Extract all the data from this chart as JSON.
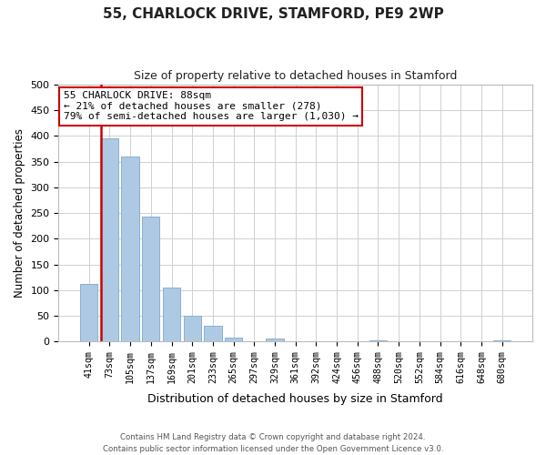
{
  "title": "55, CHARLOCK DRIVE, STAMFORD, PE9 2WP",
  "subtitle": "Size of property relative to detached houses in Stamford",
  "xlabel": "Distribution of detached houses by size in Stamford",
  "ylabel": "Number of detached properties",
  "bar_labels": [
    "41sqm",
    "73sqm",
    "105sqm",
    "137sqm",
    "169sqm",
    "201sqm",
    "233sqm",
    "265sqm",
    "297sqm",
    "329sqm",
    "361sqm",
    "392sqm",
    "424sqm",
    "456sqm",
    "488sqm",
    "520sqm",
    "552sqm",
    "584sqm",
    "616sqm",
    "648sqm",
    "680sqm"
  ],
  "bar_values": [
    112,
    395,
    360,
    243,
    105,
    50,
    30,
    8,
    0,
    5,
    0,
    0,
    0,
    0,
    2,
    0,
    0,
    0,
    0,
    0,
    2
  ],
  "bar_color": "#aec9e4",
  "bar_edge_color": "#8ab0cc",
  "vline_x_idx": 1,
  "vline_color": "#cc0000",
  "annotation_line1": "55 CHARLOCK DRIVE: 88sqm",
  "annotation_line2": "← 21% of detached houses are smaller (278)",
  "annotation_line3": "79% of semi-detached houses are larger (1,030) →",
  "annotation_box_facecolor": "#ffffff",
  "annotation_box_edgecolor": "#cc0000",
  "ylim": [
    0,
    500
  ],
  "yticks": [
    0,
    50,
    100,
    150,
    200,
    250,
    300,
    350,
    400,
    450,
    500
  ],
  "footer_line1": "Contains HM Land Registry data © Crown copyright and database right 2024.",
  "footer_line2": "Contains public sector information licensed under the Open Government Licence v3.0.",
  "background_color": "#ffffff",
  "grid_color": "#d0d0d0"
}
